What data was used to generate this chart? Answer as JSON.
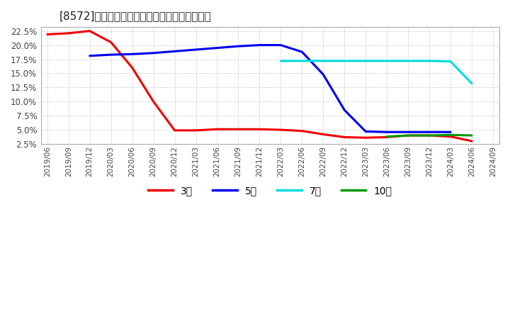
{
  "title": "[8572]　当期純利益マージンの標準偶差の推移",
  "background_color": "#ffffff",
  "plot_bg_color": "#ffffff",
  "grid_color": "#bbbbbb",
  "ylim": [
    0.025,
    0.232
  ],
  "yticks": [
    0.025,
    0.05,
    0.075,
    0.1,
    0.125,
    0.15,
    0.175,
    0.2,
    0.225
  ],
  "series": {
    "3year": {
      "color": "#ee0000",
      "label": "3年",
      "x": [
        "2019/06",
        "2019/09",
        "2019/12",
        "2020/03",
        "2020/06",
        "2020/09",
        "2020/12",
        "2021/03",
        "2021/06",
        "2021/09",
        "2021/12",
        "2022/03",
        "2022/06",
        "2022/09",
        "2022/12",
        "2023/03",
        "2023/06",
        "2023/09",
        "2023/12",
        "2024/03",
        "2024/06"
      ],
      "y": [
        0.219,
        0.221,
        0.225,
        0.205,
        0.16,
        0.1,
        0.049,
        0.049,
        0.051,
        0.051,
        0.051,
        0.05,
        0.048,
        0.042,
        0.037,
        0.036,
        0.037,
        0.04,
        0.04,
        0.038,
        0.03
      ]
    },
    "5year": {
      "color": "#0000ee",
      "label": "5年",
      "x": [
        "2019/12",
        "2020/03",
        "2020/06",
        "2020/09",
        "2020/12",
        "2021/03",
        "2021/06",
        "2021/09",
        "2021/12",
        "2022/03",
        "2022/06",
        "2022/09",
        "2022/12",
        "2023/03",
        "2023/06",
        "2023/09",
        "2023/12",
        "2024/03"
      ],
      "y": [
        0.181,
        0.183,
        0.184,
        0.186,
        0.189,
        0.192,
        0.195,
        0.198,
        0.2,
        0.2,
        0.188,
        0.148,
        0.085,
        0.047,
        0.046,
        0.046,
        0.046,
        0.046
      ]
    },
    "7year": {
      "color": "#00dddd",
      "label": "7年",
      "x": [
        "2022/03",
        "2022/06",
        "2022/09",
        "2022/12",
        "2023/03",
        "2023/06",
        "2023/09",
        "2023/12",
        "2024/03",
        "2024/06"
      ],
      "y": [
        0.172,
        0.172,
        0.172,
        0.172,
        0.172,
        0.172,
        0.172,
        0.172,
        0.171,
        0.132
      ]
    },
    "10year": {
      "color": "#009900",
      "label": "10年",
      "x": [
        "2023/06",
        "2023/09",
        "2023/12",
        "2024/03",
        "2024/06"
      ],
      "y": [
        0.038,
        0.04,
        0.04,
        0.041,
        0.04
      ]
    }
  },
  "x_tick_labels": [
    "2019/06",
    "2019/09",
    "2019/12",
    "2020/03",
    "2020/06",
    "2020/09",
    "2020/12",
    "2021/03",
    "2021/06",
    "2021/09",
    "2021/12",
    "2022/03",
    "2022/06",
    "2022/09",
    "2022/12",
    "2023/03",
    "2023/06",
    "2023/09",
    "2023/12",
    "2024/03",
    "2024/06",
    "2024/09"
  ],
  "legend_labels": [
    "3年",
    "5年",
    "7年",
    "10年"
  ],
  "legend_colors": [
    "#ee0000",
    "#0000ee",
    "#00dddd",
    "#009900"
  ]
}
